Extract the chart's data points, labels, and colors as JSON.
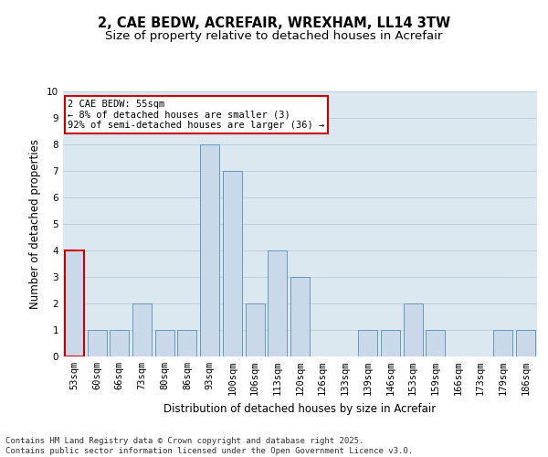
{
  "title": "2, CAE BEDW, ACREFAIR, WREXHAM, LL14 3TW",
  "subtitle": "Size of property relative to detached houses in Acrefair",
  "xlabel": "Distribution of detached houses by size in Acrefair",
  "ylabel": "Number of detached properties",
  "categories": [
    "53sqm",
    "60sqm",
    "66sqm",
    "73sqm",
    "80sqm",
    "86sqm",
    "93sqm",
    "100sqm",
    "106sqm",
    "113sqm",
    "120sqm",
    "126sqm",
    "133sqm",
    "139sqm",
    "146sqm",
    "153sqm",
    "159sqm",
    "166sqm",
    "173sqm",
    "179sqm",
    "186sqm"
  ],
  "values": [
    4,
    1,
    1,
    2,
    1,
    1,
    8,
    7,
    2,
    4,
    3,
    0,
    0,
    1,
    1,
    2,
    1,
    0,
    0,
    1,
    1
  ],
  "bar_color": "#c9d9ea",
  "bar_edge_color": "#6699bb",
  "highlight_index": 0,
  "highlight_edge_color": "#cc0000",
  "annotation_text": "2 CAE BEDW: 55sqm\n← 8% of detached houses are smaller (3)\n92% of semi-detached houses are larger (36) →",
  "annotation_box_edge_color": "#cc0000",
  "footer_text": "Contains HM Land Registry data © Crown copyright and database right 2025.\nContains public sector information licensed under the Open Government Licence v3.0.",
  "ylim": [
    0,
    10
  ],
  "yticks": [
    0,
    1,
    2,
    3,
    4,
    5,
    6,
    7,
    8,
    9,
    10
  ],
  "background_color": "#ffffff",
  "chart_bg_color": "#dce8f0",
  "grid_color": "#b0c4d8",
  "title_fontsize": 10.5,
  "subtitle_fontsize": 9.5,
  "axis_label_fontsize": 8.5,
  "tick_fontsize": 7.5,
  "annotation_fontsize": 7.5,
  "footer_fontsize": 6.5
}
